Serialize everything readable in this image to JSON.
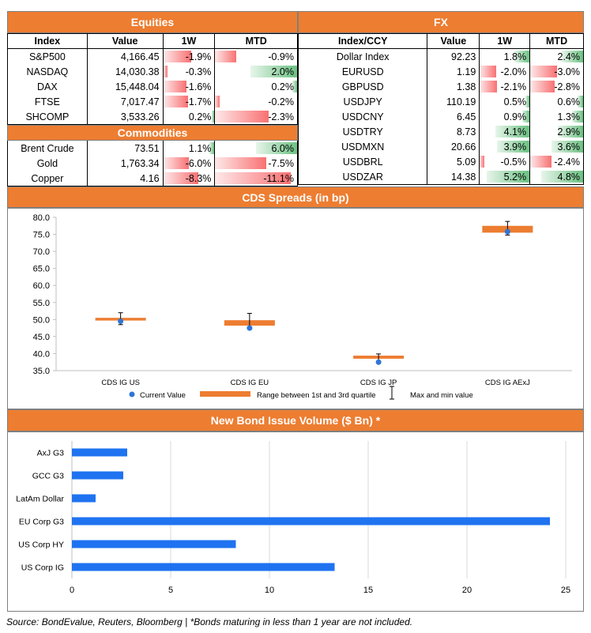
{
  "equities": {
    "title": "Equities",
    "headers": [
      "Index",
      "Value",
      "1W",
      "MTD"
    ],
    "rows": [
      {
        "name": "S&P500",
        "value": "4,166.45",
        "w1": "-1.9%",
        "mtd": "-0.9%",
        "w1n": -1.9,
        "mtdn": -0.9
      },
      {
        "name": "NASDAQ",
        "value": "14,030.38",
        "w1": "-0.3%",
        "mtd": "2.0%",
        "w1n": -0.3,
        "mtdn": 2.0
      },
      {
        "name": "DAX",
        "value": "15,448.04",
        "w1": "-1.6%",
        "mtd": "0.2%",
        "w1n": -1.6,
        "mtdn": 0.2
      },
      {
        "name": "FTSE",
        "value": "7,017.47",
        "w1": "-1.7%",
        "mtd": "-0.2%",
        "w1n": -1.7,
        "mtdn": -0.2
      },
      {
        "name": "SHCOMP",
        "value": "3,533.26",
        "w1": "0.2%",
        "mtd": "-2.3%",
        "w1n": 0.2,
        "mtdn": -2.3
      }
    ]
  },
  "commodities": {
    "title": "Commodities",
    "rows": [
      {
        "name": "Brent Crude",
        "value": "73.51",
        "w1": "1.1%",
        "mtd": "6.0%",
        "w1n": 1.1,
        "mtdn": 6.0
      },
      {
        "name": "Gold",
        "value": "1,763.34",
        "w1": "-6.0%",
        "mtd": "-7.5%",
        "w1n": -6.0,
        "mtdn": -7.5
      },
      {
        "name": "Copper",
        "value": "4.16",
        "w1": "-8.3%",
        "mtd": "-11.1%",
        "w1n": -8.3,
        "mtdn": -11.1
      }
    ]
  },
  "fx": {
    "title": "FX",
    "headers": [
      "Index/CCY",
      "Value",
      "1W",
      "MTD"
    ],
    "rows": [
      {
        "name": "Dollar Index",
        "value": "92.23",
        "w1": "1.8%",
        "mtd": "2.4%",
        "w1n": 1.8,
        "mtdn": 2.4
      },
      {
        "name": "EURUSD",
        "value": "1.19",
        "w1": "-2.0%",
        "mtd": "-3.0%",
        "w1n": -2.0,
        "mtdn": -3.0
      },
      {
        "name": "GBPUSD",
        "value": "1.38",
        "w1": "-2.1%",
        "mtd": "-2.8%",
        "w1n": -2.1,
        "mtdn": -2.8
      },
      {
        "name": "USDJPY",
        "value": "110.19",
        "w1": "0.5%",
        "mtd": "0.6%",
        "w1n": 0.5,
        "mtdn": 0.6
      },
      {
        "name": "USDCNY",
        "value": "6.45",
        "w1": "0.9%",
        "mtd": "1.3%",
        "w1n": 0.9,
        "mtdn": 1.3
      },
      {
        "name": "USDTRY",
        "value": "8.73",
        "w1": "4.1%",
        "mtd": "2.9%",
        "w1n": 4.1,
        "mtdn": 2.9
      },
      {
        "name": "USDMXN",
        "value": "20.66",
        "w1": "3.9%",
        "mtd": "3.6%",
        "w1n": 3.9,
        "mtdn": 3.6
      },
      {
        "name": "USDBRL",
        "value": "5.09",
        "w1": "-0.5%",
        "mtd": "-2.4%",
        "w1n": -0.5,
        "mtdn": -2.4
      },
      {
        "name": "USDZAR",
        "value": "14.38",
        "w1": "5.2%",
        "mtd": "4.8%",
        "w1n": 5.2,
        "mtdn": 4.8
      }
    ]
  },
  "colors": {
    "accent": "#ED7D31",
    "positive": "#63BE7B",
    "negative": "#F8696B",
    "marker": "#2E75D6",
    "bar": "#1F73F0"
  },
  "chart_data": [
    {
      "type": "scatter",
      "title": "CDS Spreads (in bp)",
      "categories": [
        "CDS IG US",
        "CDS IG EU",
        "CDS IG JP",
        "CDS IG AExJ"
      ],
      "current": [
        49.5,
        47.5,
        37.5,
        75.8
      ],
      "q1": [
        49.7,
        48.2,
        38.5,
        75.5
      ],
      "q3": [
        50.5,
        49.8,
        39.4,
        77.5
      ],
      "min": [
        48.5,
        47.8,
        37.5,
        74.8
      ],
      "max": [
        52.0,
        51.8,
        39.9,
        78.8
      ],
      "ylim": [
        35,
        80
      ],
      "yticks": [
        "35.0",
        "40.0",
        "45.0",
        "50.0",
        "55.0",
        "60.0",
        "65.0",
        "70.0",
        "75.0",
        "80.0"
      ],
      "legend": [
        "Current Value",
        "Range between 1st and 3rd quartile",
        "Max and min value"
      ],
      "legend_position": "bottom"
    },
    {
      "type": "bar",
      "orientation": "horizontal",
      "title": "New Bond Issue Volume ($ Bn) *",
      "categories": [
        "AxJ G3",
        "GCC G3",
        "LatAm Dollar",
        "EU Corp G3",
        "US Corp HY",
        "US Corp IG"
      ],
      "values": [
        2.8,
        2.6,
        1.2,
        24.2,
        8.3,
        13.3
      ],
      "xlim": [
        0,
        25
      ],
      "xticks": [
        "0",
        "5",
        "10",
        "15",
        "20",
        "25"
      ],
      "grid": true
    }
  ],
  "footer": {
    "source": "Source: BondEvalue, Reuters, Bloomberg | *Bonds maturing in less than 1 year are not included."
  }
}
